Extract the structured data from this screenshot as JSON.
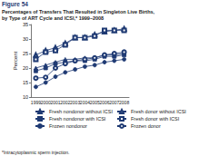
{
  "chart_data": {
    "type": "line",
    "title": "Figure 54",
    "subtitle": "Percentages of Transfers That Resulted in Singleton Live Births,\nby Type of ART Cycle and ICSI,* 1999–2008",
    "ylabel": "Percent",
    "annotations": [
      "*Intracytoplasmic sperm injection."
    ],
    "categories": [
      "1999",
      "2000",
      "2001",
      "2002",
      "2003",
      "2004",
      "2005",
      "2006",
      "2007",
      "2008"
    ],
    "ylim": [
      10,
      35
    ],
    "yticks": [
      10,
      15,
      20,
      25,
      30,
      35
    ],
    "grid": false,
    "series": [
      {
        "name": "Fresh nondonor without ICSI",
        "color": "#1f3a73",
        "marker": "triangle",
        "values": [
          20,
          21,
          22,
          23,
          23,
          23.5,
          23.5,
          24.5,
          24.5,
          25
        ]
      },
      {
        "name": "Fresh nondonor with ICSI",
        "color": "#1f3a73",
        "marker": "square",
        "values": [
          19,
          20,
          21.5,
          22,
          22.5,
          22.5,
          23,
          24,
          24,
          24.5
        ]
      },
      {
        "name": "Frozen nondonor",
        "color": "#1f3a73",
        "marker": "circle",
        "values": [
          13.5,
          15,
          17,
          18.5,
          19.5,
          20.5,
          21,
          22,
          22.5,
          23
        ]
      },
      {
        "name": "Fresh donor without ICSI",
        "color": "#1f3a73",
        "marker": "triangle-open",
        "values": [
          24.5,
          26,
          27,
          28.5,
          30.5,
          30.5,
          31.5,
          32.5,
          33,
          33.5
        ]
      },
      {
        "name": "Fresh donor with ICSI",
        "color": "#1f3a73",
        "marker": "square-open",
        "values": [
          23,
          25.5,
          26,
          28,
          30.5,
          30.5,
          31,
          33,
          33,
          33
        ]
      },
      {
        "name": "Frozen donor",
        "color": "#1f3a73",
        "marker": "circle-open",
        "values": [
          16.5,
          16.8,
          20,
          21.5,
          22.5,
          23,
          23.5,
          24.5,
          25,
          25.5
        ]
      }
    ]
  }
}
